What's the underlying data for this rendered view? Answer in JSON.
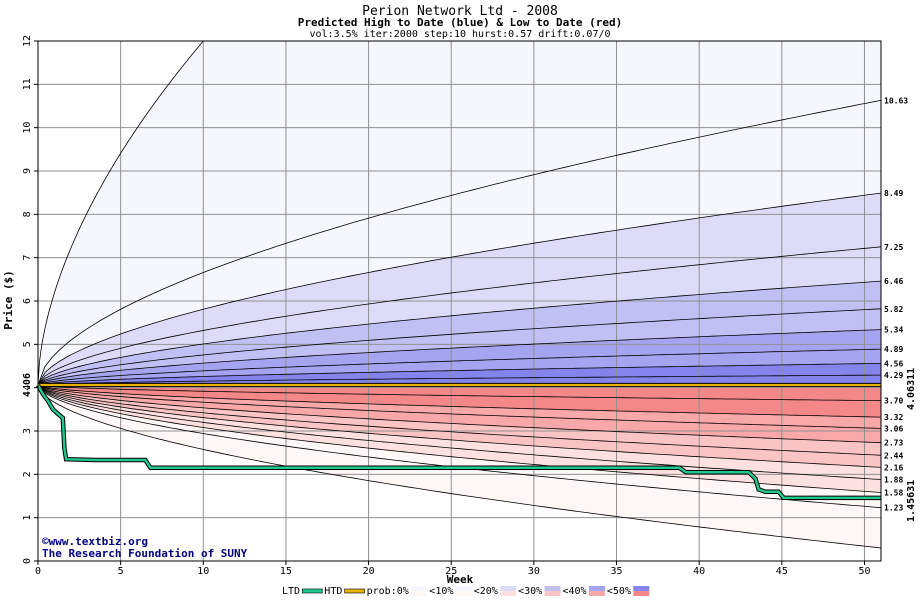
{
  "chart_data": {
    "type": "area",
    "title": "Perion Network Ltd - 2008",
    "subtitle": "Predicted High to Date (blue) &  Low to Date (red)",
    "params": "vol:3.5% iter:2000 step:10 hurst:0.57 drift:0.07/0",
    "xlabel": "Week",
    "ylabel": "Price ($)",
    "xlim": [
      0,
      51
    ],
    "ylim": [
      0,
      12
    ],
    "x_ticks": [
      0,
      5,
      10,
      15,
      20,
      25,
      30,
      35,
      40,
      45,
      50
    ],
    "y_ticks": [
      0,
      1,
      2,
      3,
      4,
      5,
      6,
      7,
      8,
      9,
      10,
      11,
      12
    ],
    "grid": true,
    "start_price": 4.06,
    "start_label": "4.06",
    "high_quantiles_end": [
      10.63,
      8.49,
      7.25,
      6.46,
      5.82,
      5.34,
      4.89,
      4.56,
      4.29
    ],
    "high_quantile_labels": [
      "10.63",
      "8.49",
      "7.25",
      "6.46",
      "5.82",
      "5.34",
      "4.89",
      "4.56",
      "4.29"
    ],
    "low_quantiles_end": [
      3.7,
      3.32,
      3.06,
      2.73,
      2.44,
      2.16,
      1.88,
      1.58,
      1.23
    ],
    "low_quantile_labels": [
      "3.70",
      "3.32",
      "3.06",
      "2.73",
      "2.44",
      "2.16",
      "1.88",
      "1.58",
      "1.23"
    ],
    "outer_high_end_at_week_10": 12.0,
    "outer_low_end": 0.3,
    "htd": {
      "value": 4.06311,
      "label": "4.06311",
      "color": "#e8b400"
    },
    "ltd": {
      "label": "1.45631",
      "color": "#20c890",
      "points": [
        [
          0,
          4.06
        ],
        [
          0.3,
          3.85
        ],
        [
          0.6,
          3.7
        ],
        [
          0.9,
          3.5
        ],
        [
          1.2,
          3.4
        ],
        [
          1.5,
          3.3
        ],
        [
          1.6,
          2.6
        ],
        [
          1.7,
          2.35
        ],
        [
          3.5,
          2.33
        ],
        [
          6.5,
          2.33
        ],
        [
          6.8,
          2.15
        ],
        [
          38.8,
          2.15
        ],
        [
          39.2,
          2.05
        ],
        [
          43.0,
          2.05
        ],
        [
          43.4,
          1.9
        ],
        [
          43.6,
          1.65
        ],
        [
          44.0,
          1.6
        ],
        [
          44.8,
          1.6
        ],
        [
          45.1,
          1.46
        ],
        [
          51,
          1.45631
        ]
      ]
    },
    "legend": {
      "items": [
        "LTD",
        "HTD",
        "prob:0%",
        "<10%",
        "<20%",
        "<30%",
        "<40%",
        "<50%"
      ],
      "colors": {
        "ltd": "#20c890",
        "htd": "#e8b400",
        "blue": [
          "#f6f6ff",
          "#dcdcf8",
          "#c0c0f4",
          "#a4a4f0",
          "#8484ec"
        ],
        "red": [
          "#fff6f6",
          "#fde0e0",
          "#fbc4c4",
          "#f8a8a8",
          "#f48888"
        ]
      }
    },
    "credits": [
      "©www.textbiz.org",
      "The Research Foundation of SUNY"
    ]
  }
}
